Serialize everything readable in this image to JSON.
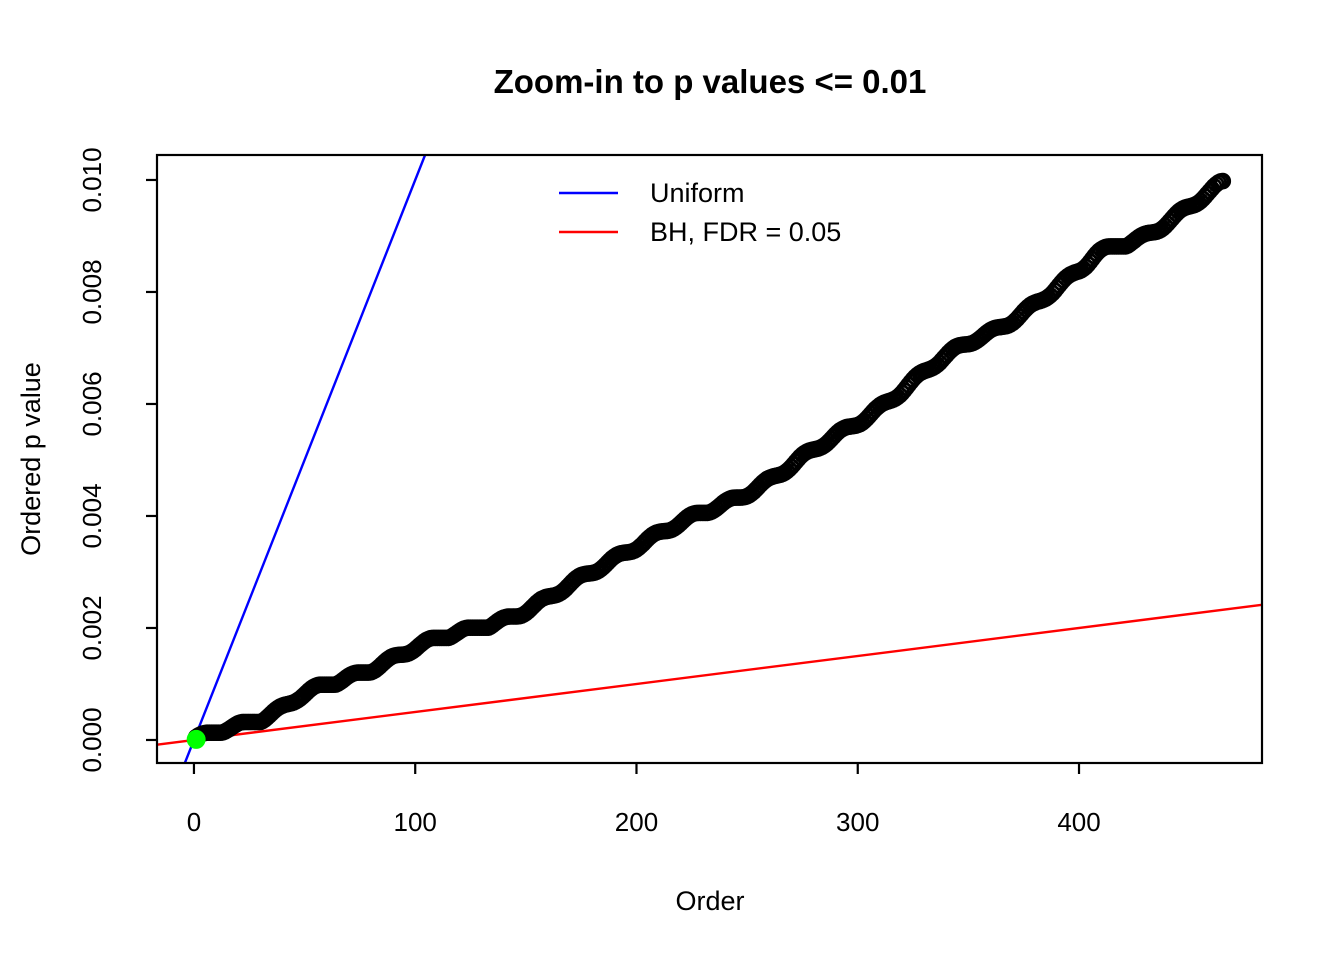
{
  "chart_data": {
    "type": "scatter",
    "title": "Zoom-in to p values <= 0.01",
    "xlabel": "Order",
    "ylabel": "Ordered p value",
    "x_ticks": {
      "values": [
        0,
        100,
        200,
        300,
        400
      ],
      "labels": [
        "0",
        "100",
        "200",
        "300",
        "400"
      ]
    },
    "y_ticks": {
      "values": [
        0.0,
        0.002,
        0.004,
        0.006,
        0.008,
        0.01
      ],
      "labels": [
        "0.000",
        "0.002",
        "0.004",
        "0.006",
        "0.008",
        "0.010"
      ]
    },
    "xlim": [
      -16.7,
      482.7
    ],
    "ylim": [
      -0.000411,
      0.010446
    ],
    "grid": false,
    "n_points": 465,
    "point_color": "#000000",
    "interpolation": "monotone-cubic",
    "anchor_points": [
      [
        1,
        1e-05
      ],
      [
        5,
        6e-05
      ],
      [
        12,
        0.00018
      ],
      [
        34,
        0.00045
      ],
      [
        50,
        0.0008
      ],
      [
        75,
        0.0012
      ],
      [
        100,
        0.00164
      ],
      [
        150,
        0.00232
      ],
      [
        200,
        0.00348
      ],
      [
        250,
        0.00443
      ],
      [
        300,
        0.00568
      ],
      [
        350,
        0.00709
      ],
      [
        364,
        0.00738
      ],
      [
        400,
        0.00836
      ],
      [
        409,
        0.0087
      ],
      [
        430,
        0.00902
      ],
      [
        450,
        0.0095
      ],
      [
        465,
        0.00995
      ]
    ],
    "reference_lines": [
      {
        "name": "Uniform",
        "color": "#0000ff",
        "slope": 0.0001,
        "intercept": 0
      },
      {
        "name": "BH, FDR = 0.05",
        "color": "#ff0000",
        "slope": 5e-06,
        "intercept": 0
      }
    ],
    "legend": [
      {
        "label": "Uniform",
        "color": "#0000ff"
      },
      {
        "label": "BH, FDR = 0.05",
        "color": "#ff0000"
      }
    ],
    "legend_position": "top-center-inside",
    "highlight_point": {
      "order": 1,
      "p": 1e-05,
      "color": "#00ff00"
    }
  }
}
